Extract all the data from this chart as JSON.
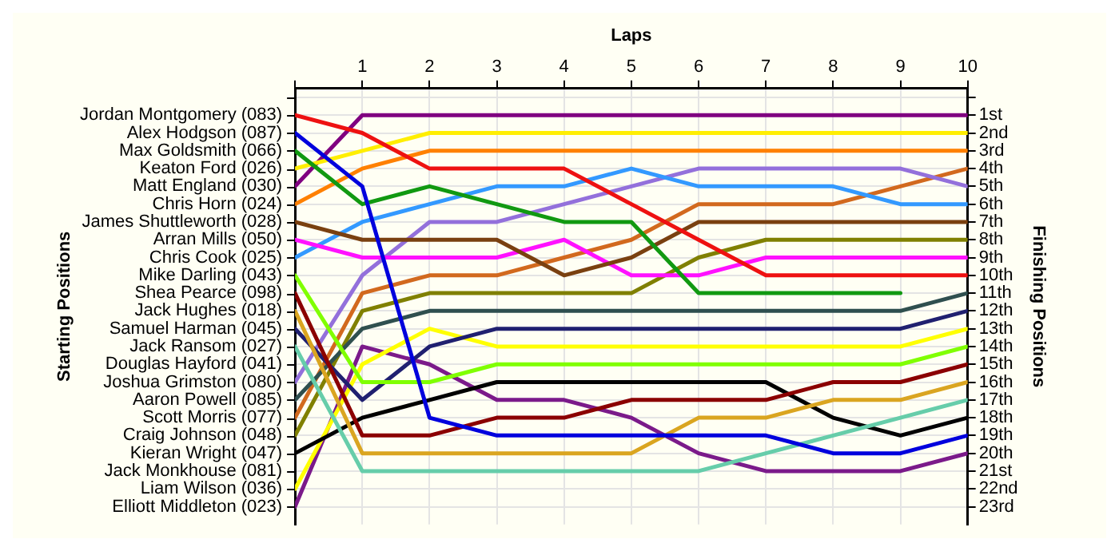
{
  "chart_data": {
    "type": "line",
    "xlabel": "Laps",
    "y2label": "Finishing Positions",
    "x": [
      0,
      1,
      2,
      3,
      4,
      5,
      6,
      7,
      8,
      9,
      10
    ],
    "xlim": [
      0,
      10
    ],
    "xticks": [
      {
        "value": 0,
        "label": null
      },
      1,
      2,
      3,
      4,
      5,
      6,
      7,
      8,
      9,
      10
    ],
    "y2lim": [
      24,
      -0.5
    ],
    "y2ticks": [
      {
        "value": 0,
        "label": null
      },
      {
        "value": 1,
        "label": "1st"
      },
      {
        "value": 2,
        "label": "2nd"
      },
      {
        "value": 3,
        "label": "3rd"
      },
      {
        "value": 4,
        "label": "4th"
      },
      {
        "value": 5,
        "label": "5th"
      },
      {
        "value": 6,
        "label": "6th"
      },
      {
        "value": 7,
        "label": "7th"
      },
      {
        "value": 8,
        "label": "8th"
      },
      {
        "value": 9,
        "label": "9th"
      },
      {
        "value": 10,
        "label": "10th"
      },
      {
        "value": 11,
        "label": "11th"
      },
      {
        "value": 12,
        "label": "12th"
      },
      {
        "value": 13,
        "label": "13th"
      },
      {
        "value": 14,
        "label": "14th"
      },
      {
        "value": 15,
        "label": "15th"
      },
      {
        "value": 16,
        "label": "16th"
      },
      {
        "value": 17,
        "label": "17th"
      },
      {
        "value": 18,
        "label": "18th"
      },
      {
        "value": 19,
        "label": "19th"
      },
      {
        "value": 20,
        "label": "20th"
      },
      {
        "value": 21,
        "label": "21st"
      },
      {
        "value": 22,
        "label": "22nd"
      },
      {
        "value": 23,
        "label": "23rd"
      }
    ],
    "annotations": [
      "Starting Positions",
      "Jordan Montgomery (083)",
      "Alex Hodgson (087)",
      "Max Goldsmith (066)",
      "Keaton Ford (026)",
      "Matt England (030)",
      "Chris Horn (024)",
      "James Shuttleworth (028)",
      "Arran Mills (050)",
      "Chris Cook (025)",
      "Mike Darling (043)",
      "Shea Pearce (098)",
      "Jack Hughes (018)",
      "Samuel Harman (045)",
      "Jack Ransom (027)",
      "Douglas Hayford (041)",
      "Joshua Grimston (080)",
      "Aaron Powell (085)",
      "Scott Morris (077)",
      "Craig Johnson (048)",
      "Kieran Wright (047)",
      "Jack Monkhouse (081)",
      "Liam Wilson (036)",
      "Elliott Middleton (023)"
    ],
    "grid": true,
    "legend": false,
    "marker": "none",
    "line_style": "solid",
    "series": [
      {
        "color": "#ee1111",
        "axis": "y2",
        "values": [
          1,
          2,
          4,
          4,
          4,
          6,
          8,
          10,
          10,
          10,
          10
        ]
      },
      {
        "color": "#0000dd",
        "axis": "y2",
        "values": [
          2,
          5,
          18,
          19,
          19,
          19,
          19,
          19,
          20,
          20,
          19
        ]
      },
      {
        "color": "#119911",
        "axis": "y2",
        "values": [
          3,
          6,
          5,
          6,
          7,
          7,
          11,
          11,
          11,
          11,
          null
        ]
      },
      {
        "color": "#ffee00",
        "axis": "y2",
        "values": [
          4,
          3,
          2,
          2,
          2,
          2,
          2,
          2,
          2,
          2,
          2
        ]
      },
      {
        "color": "#800080",
        "axis": "y2",
        "values": [
          5,
          1,
          1,
          1,
          1,
          1,
          1,
          1,
          1,
          1,
          1
        ]
      },
      {
        "color": "#ff8000",
        "axis": "y2",
        "values": [
          6,
          4,
          3,
          3,
          3,
          3,
          3,
          3,
          3,
          3,
          3
        ]
      },
      {
        "color": "#7a4010",
        "axis": "y2",
        "values": [
          7,
          8,
          8,
          8,
          10,
          9,
          7,
          7,
          7,
          7,
          7
        ]
      },
      {
        "color": "#ff11ff",
        "axis": "y2",
        "values": [
          8,
          9,
          9,
          9,
          8,
          10,
          10,
          9,
          9,
          9,
          9
        ]
      },
      {
        "color": "#3399ff",
        "axis": "y2",
        "values": [
          9,
          7,
          6,
          5,
          5,
          4,
          5,
          5,
          5,
          6,
          6
        ]
      },
      {
        "color": "#80ff00",
        "axis": "y2",
        "values": [
          10,
          16,
          16,
          15,
          15,
          15,
          15,
          15,
          15,
          15,
          14
        ]
      },
      {
        "color": "#8b0000",
        "axis": "y2",
        "values": [
          11,
          19,
          19,
          18,
          18,
          17,
          17,
          17,
          16,
          16,
          15
        ]
      },
      {
        "color": "#daa520",
        "axis": "y2",
        "values": [
          12,
          20,
          20,
          20,
          20,
          20,
          18,
          18,
          17,
          17,
          16
        ]
      },
      {
        "color": "#202070",
        "axis": "y2",
        "values": [
          13,
          17,
          14,
          13,
          13,
          13,
          13,
          13,
          13,
          13,
          12
        ]
      },
      {
        "color": "#66cdaa",
        "axis": "y2",
        "values": [
          14,
          21,
          21,
          21,
          21,
          21,
          21,
          20,
          19,
          18,
          17
        ]
      },
      {
        "color": "#9370db",
        "axis": "y2",
        "values": [
          16,
          10,
          7,
          7,
          6,
          5,
          4,
          4,
          4,
          4,
          5
        ]
      },
      {
        "color": "#2f4f4f",
        "axis": "y2",
        "values": [
          17,
          13,
          12,
          12,
          12,
          12,
          12,
          12,
          12,
          12,
          11
        ]
      },
      {
        "color": "#d2691e",
        "axis": "y2",
        "values": [
          18,
          11,
          10,
          10,
          9,
          8,
          6,
          6,
          6,
          5,
          4
        ]
      },
      {
        "color": "#808000",
        "axis": "y2",
        "values": [
          19,
          12,
          11,
          11,
          11,
          11,
          9,
          8,
          8,
          8,
          8
        ]
      },
      {
        "color": "#000000",
        "axis": "y2",
        "values": [
          20,
          18,
          17,
          16,
          16,
          16,
          16,
          16,
          18,
          19,
          18
        ]
      },
      {
        "color": "#ffff00",
        "axis": "y2",
        "values": [
          22,
          15,
          13,
          14,
          14,
          14,
          14,
          14,
          14,
          14,
          13
        ]
      },
      {
        "color": "#7b1a8a",
        "axis": "y2",
        "values": [
          23,
          14,
          15,
          17,
          17,
          18,
          20,
          21,
          21,
          21,
          20
        ]
      }
    ]
  }
}
